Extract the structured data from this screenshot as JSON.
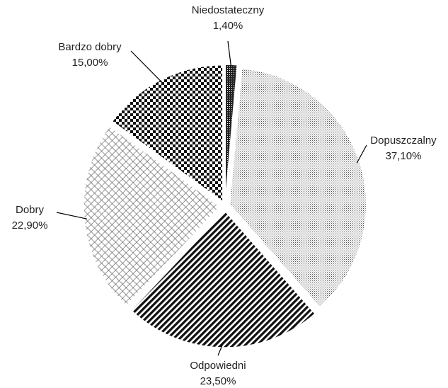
{
  "chart_data": {
    "type": "pie",
    "categories": [
      "Niedostateczny",
      "Dopuszczalny",
      "Odpowiedni",
      "Dobry",
      "Bardzo dobry"
    ],
    "values": [
      1.4,
      37.1,
      23.5,
      22.9,
      15.0
    ],
    "value_labels": [
      "1,40%",
      "37,10%",
      "23,50%",
      "22,90%",
      "15,00%"
    ]
  }
}
